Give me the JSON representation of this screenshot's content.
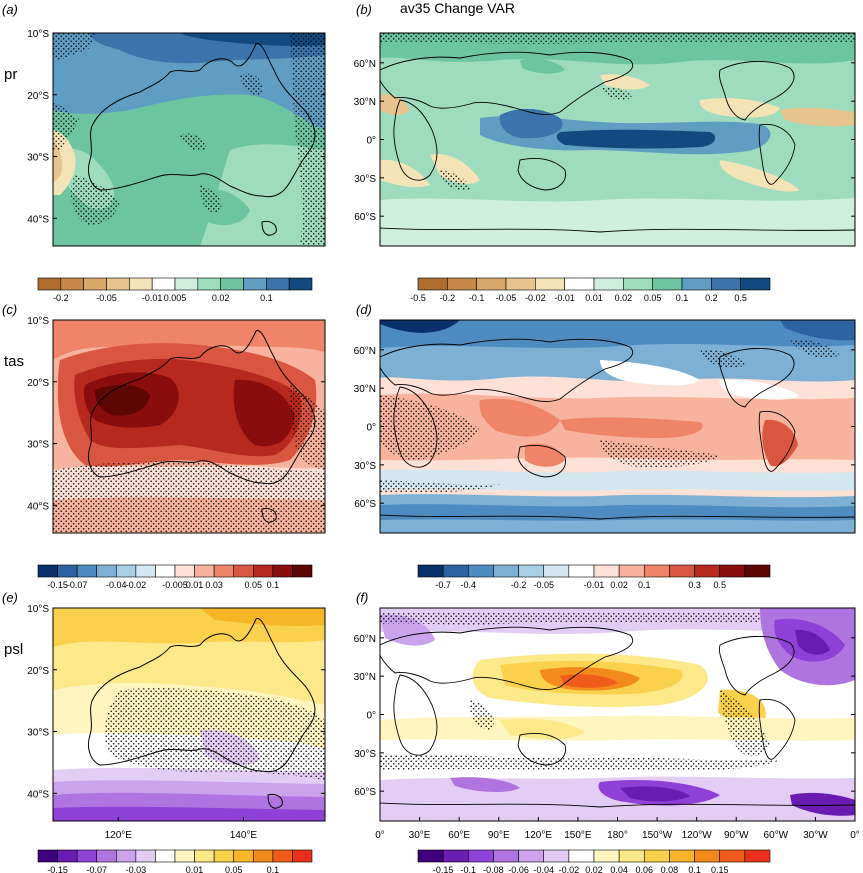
{
  "figure": {
    "title": "av35 Change VAR"
  },
  "colors": {
    "brown_green_blue": [
      "#b06b2e",
      "#c7884a",
      "#d9a76a",
      "#e6c48c",
      "#f3e3b6",
      "#ffffff",
      "#cfeedd",
      "#9fdcbe",
      "#6cc4a1",
      "#5f9ec2",
      "#3a74ab",
      "#124a7f"
    ],
    "blue_red": [
      "#08306b",
      "#2c62a0",
      "#4e8bc1",
      "#7eb0d6",
      "#a9cfe4",
      "#d3e7f0",
      "#ffffff",
      "#fde0d6",
      "#f8b39e",
      "#ef8468",
      "#d95640",
      "#b7281f",
      "#8a0d0d",
      "#5c0606"
    ],
    "purple_orange": [
      "#3f007d",
      "#6a1bb0",
      "#8f40d6",
      "#b074e0",
      "#cba2ec",
      "#e3cdf5",
      "#ffffff",
      "#fff5c0",
      "#fde88a",
      "#f9d14d",
      "#f5b627",
      "#f28a1c",
      "#ee5b1a",
      "#e8301d"
    ],
    "land_line": "#000000",
    "stipple": "#000000"
  },
  "panels": [
    {
      "label": "(a)",
      "variable": "pr",
      "region": "australia",
      "y_ticks": [
        "10°S",
        "20°S",
        "30°S",
        "40°S"
      ],
      "x_ticks": [],
      "colorbar": {
        "scheme": "brown_green_blue",
        "labels": [
          "-0.2",
          "-0.05",
          "-0.01",
          "0.005",
          "0.02",
          "0.1"
        ]
      }
    },
    {
      "label": "(b)",
      "variable": "",
      "region": "global",
      "y_ticks": [
        "60°N",
        "30°N",
        "0°",
        "30°S",
        "60°S"
      ],
      "x_ticks": [],
      "colorbar": {
        "scheme": "brown_green_blue",
        "labels": [
          "-0.5",
          "-0.2",
          "-0.1",
          "-0.05",
          "-0.02",
          "-0.01",
          "0.01",
          "0.02",
          "0.05",
          "0.1",
          "0.2",
          "0.5"
        ]
      }
    },
    {
      "label": "(c)",
      "variable": "tas",
      "region": "australia",
      "y_ticks": [
        "10°S",
        "20°S",
        "30°S",
        "40°S"
      ],
      "x_ticks": [],
      "colorbar": {
        "scheme": "blue_red",
        "labels": [
          "-0.15",
          "-0.07",
          "-0.04",
          "-0.02",
          "-0.005",
          "0.01",
          "0.03",
          "0.05",
          "0.1"
        ]
      }
    },
    {
      "label": "(d)",
      "variable": "",
      "region": "global",
      "y_ticks": [
        "60°N",
        "30°N",
        "0°",
        "30°S",
        "60°S"
      ],
      "x_ticks": [],
      "colorbar": {
        "scheme": "blue_red",
        "labels": [
          "-0.7",
          "-0.4",
          "-0.2",
          "-0.05",
          "-0.01",
          "0.02",
          "0.1",
          "0.3",
          "0.5"
        ]
      }
    },
    {
      "label": "(e)",
      "variable": "psl",
      "region": "australia",
      "y_ticks": [
        "10°S",
        "20°S",
        "30°S",
        "40°S"
      ],
      "x_ticks": [
        "120°E",
        "140°E"
      ],
      "colorbar": {
        "scheme": "purple_orange",
        "labels": [
          "-0.15",
          "-0.07",
          "-0.03",
          "0.01",
          "0.05",
          "0.1"
        ]
      }
    },
    {
      "label": "(f)",
      "variable": "",
      "region": "global",
      "y_ticks": [
        "60°N",
        "30°N",
        "0°",
        "30°S",
        "60°S"
      ],
      "x_ticks": [
        "0°",
        "30°E",
        "60°E",
        "90°E",
        "120°E",
        "150°E",
        "180°",
        "150°W",
        "120°W",
        "90°W",
        "60°W",
        "30°W",
        "0°"
      ],
      "colorbar": {
        "scheme": "purple_orange",
        "labels": [
          "-0.15",
          "-0.1",
          "-0.08",
          "-0.06",
          "-0.04",
          "-0.02",
          "0.02",
          "0.04",
          "0.06",
          "0.08",
          "0.1",
          "0.15"
        ]
      }
    }
  ],
  "chart_data": {
    "type": "heatmap",
    "title": "av35 Change VAR",
    "variables": [
      "pr",
      "tas",
      "psl"
    ],
    "australia_lat_range": [
      "10°S",
      "45°S"
    ],
    "australia_lon_ticks": [
      "120°E",
      "140°E"
    ],
    "global_lat_ticks": [
      "60°N",
      "30°N",
      "0°",
      "30°S",
      "60°S"
    ],
    "global_lon_ticks": [
      "0°",
      "30°E",
      "60°E",
      "90°E",
      "120°E",
      "150°E",
      "180°",
      "150°W",
      "120°W",
      "90°W",
      "60°W",
      "30°W",
      "0°"
    ],
    "colorbar_levels": {
      "pr_australia": [
        -0.2,
        -0.05,
        -0.01,
        0.005,
        0.02,
        0.1
      ],
      "pr_global": [
        -0.5,
        -0.2,
        -0.1,
        -0.05,
        -0.02,
        -0.01,
        0.01,
        0.02,
        0.05,
        0.1,
        0.2,
        0.5
      ],
      "tas_australia": [
        -0.15,
        -0.07,
        -0.04,
        -0.02,
        -0.005,
        0.01,
        0.03,
        0.05,
        0.1
      ],
      "tas_global": [
        -0.7,
        -0.4,
        -0.2,
        -0.05,
        -0.01,
        0.02,
        0.1,
        0.3,
        0.5
      ],
      "psl_australia": [
        -0.15,
        -0.07,
        -0.03,
        0.01,
        0.05,
        0.1
      ],
      "psl_global": [
        -0.15,
        -0.1,
        -0.08,
        -0.06,
        -0.04,
        -0.02,
        0.02,
        0.04,
        0.06,
        0.08,
        0.1,
        0.15
      ]
    },
    "stippling": true,
    "grid": false
  }
}
